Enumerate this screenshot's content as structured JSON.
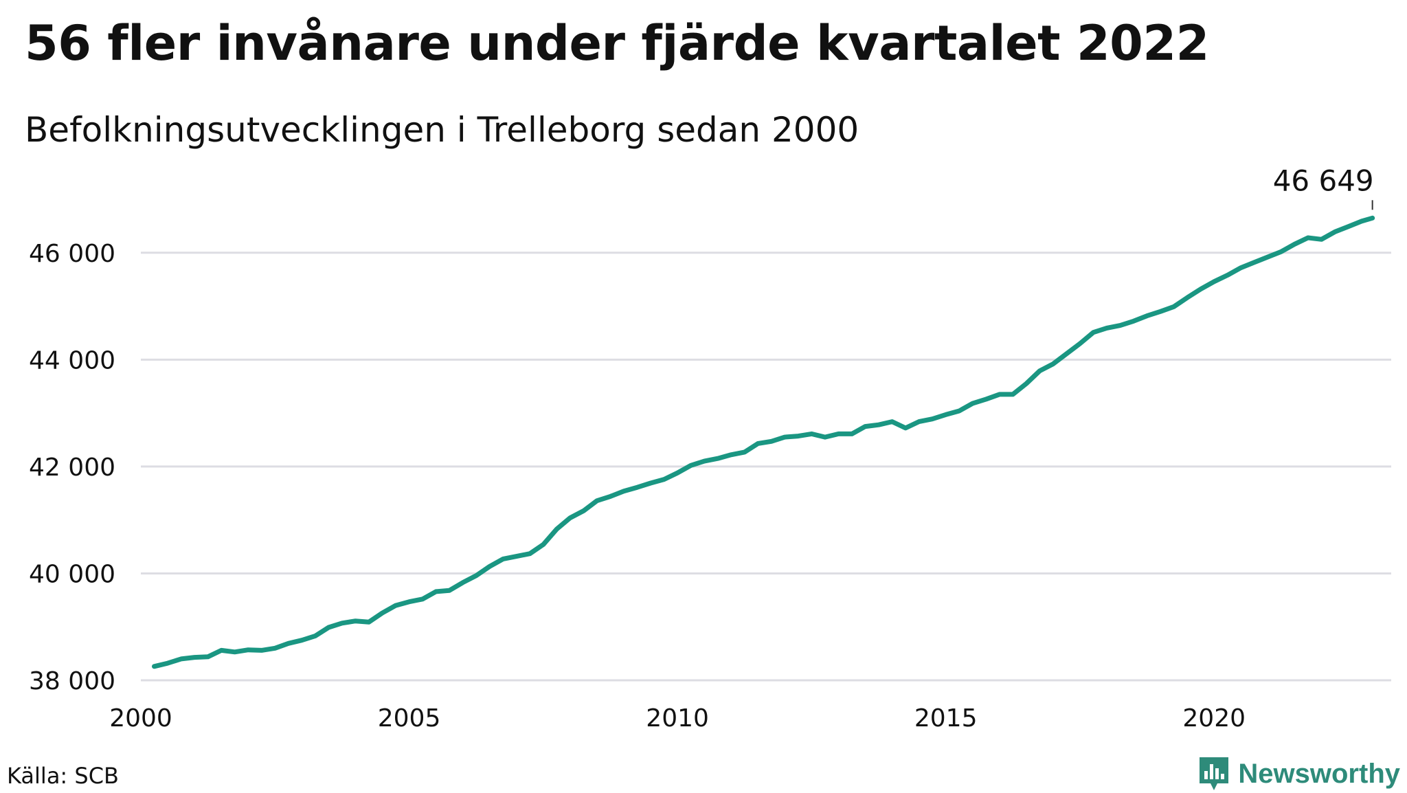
{
  "title": "56 fler invånare under fjärde kvartalet 2022",
  "subtitle": "Befolkningsutvecklingen i Trelleborg sedan 2000",
  "source": "Källa: SCB",
  "brand": {
    "name": "Newsworthy",
    "icon": "newsworthy-logo-icon"
  },
  "colors": {
    "line": "#1a9682",
    "grid": "#dddde3",
    "brand": "#2e8b7a",
    "text": "#111111"
  },
  "chart_data": {
    "type": "line",
    "title": "56 fler invånare under fjärde kvartalet 2022",
    "subtitle": "Befolkningsutvecklingen i Trelleborg sedan 2000",
    "xlabel": "",
    "ylabel": "",
    "xlim": [
      2000,
      2023.3
    ],
    "ylim": [
      38000,
      47000
    ],
    "xticks": [
      2000,
      2005,
      2010,
      2015,
      2020
    ],
    "xtick_labels": [
      "2000",
      "2005",
      "2010",
      "2015",
      "2020"
    ],
    "yticks": [
      38000,
      40000,
      42000,
      44000,
      46000
    ],
    "ytick_labels": [
      "38 000",
      "40 000",
      "42 000",
      "44 000",
      "46 000"
    ],
    "grid": true,
    "annotation": {
      "text": "46 649",
      "x": 2022.95,
      "y": 46649
    },
    "series": [
      {
        "x": [
          2000.25,
          2000.5,
          2000.75,
          2001,
          2001.25,
          2001.5,
          2001.75,
          2002,
          2002.25,
          2002.5,
          2002.75,
          2003,
          2003.25,
          2003.5,
          2003.75,
          2004,
          2004.25,
          2004.5,
          2004.75,
          2005,
          2005.25,
          2005.5,
          2005.75,
          2006,
          2006.25,
          2006.5,
          2006.75,
          2007,
          2007.25,
          2007.5,
          2007.75,
          2008,
          2008.25,
          2008.5,
          2008.75,
          2009,
          2009.25,
          2009.5,
          2009.75,
          2010,
          2010.25,
          2010.5,
          2010.75,
          2011,
          2011.25,
          2011.5,
          2011.75,
          2012,
          2012.25,
          2012.5,
          2012.75,
          2013,
          2013.25,
          2013.5,
          2013.75,
          2014,
          2014.25,
          2014.5,
          2014.75,
          2015,
          2015.25,
          2015.5,
          2015.75,
          2016,
          2016.25,
          2016.5,
          2016.75,
          2017,
          2017.25,
          2017.5,
          2017.75,
          2018,
          2018.25,
          2018.5,
          2018.75,
          2019,
          2019.25,
          2019.5,
          2019.75,
          2020,
          2020.25,
          2020.5,
          2020.75,
          2021,
          2021.25,
          2021.5,
          2021.75,
          2022,
          2022.25,
          2022.5,
          2022.75,
          2022.95
        ],
        "values": [
          38260,
          38320,
          38400,
          38430,
          38440,
          38560,
          38530,
          38570,
          38560,
          38600,
          38690,
          38750,
          38830,
          38990,
          39070,
          39110,
          39090,
          39260,
          39400,
          39470,
          39520,
          39660,
          39680,
          39830,
          39960,
          40130,
          40270,
          40320,
          40370,
          40540,
          40830,
          41040,
          41170,
          41360,
          41440,
          41540,
          41610,
          41690,
          41760,
          41880,
          42020,
          42100,
          42150,
          42220,
          42270,
          42430,
          42470,
          42550,
          42570,
          42610,
          42550,
          42610,
          42610,
          42750,
          42780,
          42840,
          42720,
          42840,
          42890,
          42970,
          43040,
          43180,
          43260,
          43350,
          43350,
          43550,
          43790,
          43920,
          44110,
          44300,
          44510,
          44590,
          44640,
          44720,
          44820,
          44900,
          44990,
          45160,
          45320,
          45460,
          45580,
          45720,
          45820,
          45920,
          46020,
          46160,
          46280,
          46250,
          46390,
          46490,
          46590,
          46649
        ]
      }
    ]
  }
}
